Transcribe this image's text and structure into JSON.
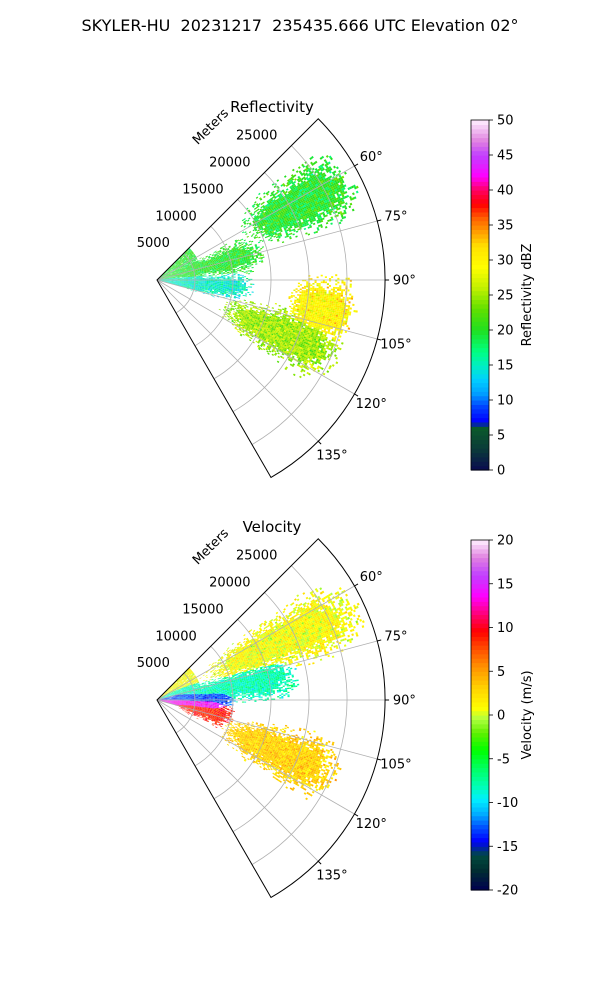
{
  "figure": {
    "title": "SKYLER-HU  20231217  235435.666 UTC Elevation 02°"
  },
  "panels": [
    {
      "title": "Reflectivity",
      "radial_axis_label": "Meters",
      "range_ticks": [
        "5000",
        "10000",
        "15000",
        "20000",
        "25000"
      ],
      "azimuth_ticks": [
        "60°",
        "75°",
        "90°",
        "105°",
        "120°",
        "135°"
      ],
      "colorbar": {
        "label": "Reflectivity dBZ",
        "ticks": [
          "0",
          "5",
          "10",
          "15",
          "20",
          "25",
          "30",
          "35",
          "40",
          "45",
          "50"
        ],
        "range": [
          0,
          50
        ]
      }
    },
    {
      "title": "Velocity",
      "radial_axis_label": "Meters",
      "range_ticks": [
        "5000",
        "10000",
        "15000",
        "20000",
        "25000"
      ],
      "azimuth_ticks": [
        "60°",
        "75°",
        "90°",
        "105°",
        "120°",
        "135°"
      ],
      "colorbar": {
        "label": "Velocity (m/s)",
        "ticks": [
          "-20",
          "-15",
          "-10",
          "-5",
          "0",
          "5",
          "10",
          "15",
          "20"
        ],
        "range": [
          -20,
          20
        ]
      }
    }
  ],
  "chart_data": [
    {
      "type": "heatmap",
      "projection": "polar-sector",
      "title": "Reflectivity",
      "azimuth_range_deg": [
        45,
        150
      ],
      "range_limit_m": 30000,
      "variable": "Reflectivity dBZ",
      "value_range": [
        0,
        50
      ],
      "colormap": "pyart_NWSRef",
      "features": [
        {
          "az_deg": 75,
          "range_m": [
            3000,
            14000
          ],
          "dbz_typical": 20
        },
        {
          "az_deg": 62,
          "range_m": [
            14000,
            28000
          ],
          "dbz_typical": 20
        },
        {
          "az_deg": 95,
          "range_m": [
            2000,
            12000
          ],
          "dbz_typical": 15
        },
        {
          "az_deg": 100,
          "range_m": [
            18000,
            26000
          ],
          "dbz_typical": 30
        },
        {
          "az_deg": 113,
          "range_m": [
            10000,
            25000
          ],
          "dbz_typical": 25
        }
      ]
    },
    {
      "type": "heatmap",
      "projection": "polar-sector",
      "title": "Velocity",
      "azimuth_range_deg": [
        45,
        150
      ],
      "range_limit_m": 30000,
      "variable": "Velocity (m/s)",
      "value_range": [
        -20,
        20
      ],
      "colormap": "pyart_BuDRd18",
      "features": [
        {
          "az_deg": 65,
          "range_m": [
            8000,
            28000
          ],
          "velocity_typical": 1
        },
        {
          "az_deg": 80,
          "range_m": [
            4000,
            18000
          ],
          "velocity_typical": -8
        },
        {
          "az_deg": 88,
          "range_m": [
            2000,
            10000
          ],
          "velocity_typical": -13
        },
        {
          "az_deg": 95,
          "range_m": [
            1500,
            9000
          ],
          "velocity_typical": 14
        },
        {
          "az_deg": 103,
          "range_m": [
            3000,
            10000
          ],
          "velocity_typical": 9
        },
        {
          "az_deg": 113,
          "range_m": [
            10000,
            25000
          ],
          "velocity_typical": 3
        }
      ]
    }
  ]
}
